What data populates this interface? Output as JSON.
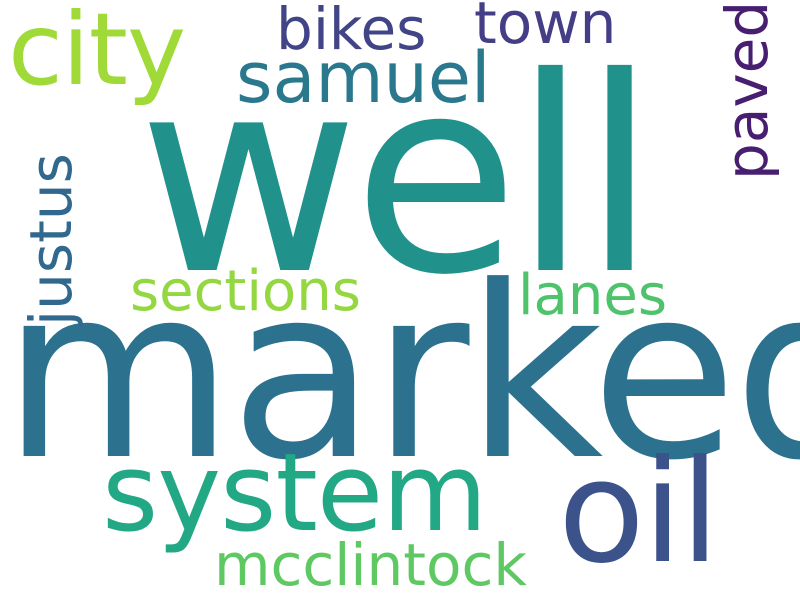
{
  "words": {
    "well": {
      "text": "well",
      "color": "#21918c"
    },
    "marked": {
      "text": "marked",
      "color": "#2c728e"
    },
    "system": {
      "text": "system",
      "color": "#22a884"
    },
    "oil": {
      "text": "oil",
      "color": "#3b528b"
    },
    "city": {
      "text": "city",
      "color": "#a0da39"
    },
    "samuel": {
      "text": "samuel",
      "color": "#2a788e"
    },
    "bikes": {
      "text": "bikes",
      "color": "#414487"
    },
    "town": {
      "text": "town",
      "color": "#433e85"
    },
    "paved": {
      "text": "paved",
      "color": "#481f70"
    },
    "justus": {
      "text": "justus",
      "color": "#31688e"
    },
    "sections": {
      "text": "sections",
      "color": "#93d741"
    },
    "lanes": {
      "text": "lanes",
      "color": "#4ec36b"
    },
    "mcclintock": {
      "text": "mcclintock",
      "color": "#5ec962"
    }
  }
}
